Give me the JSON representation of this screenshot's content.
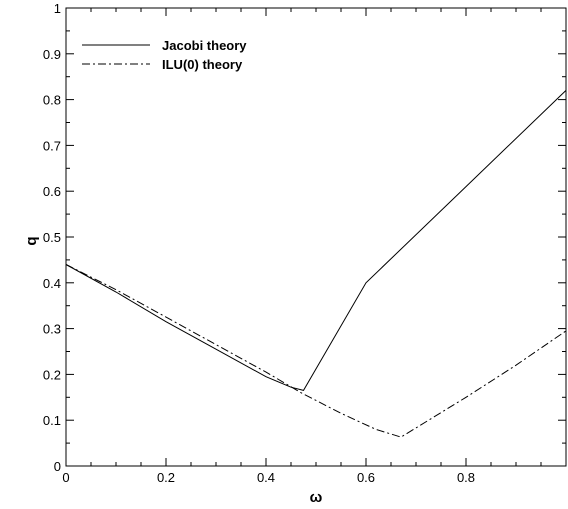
{
  "chart_data": {
    "type": "line",
    "title": "",
    "xlabel": "ω",
    "ylabel": "q",
    "xlim": [
      0,
      1
    ],
    "ylim": [
      0,
      1
    ],
    "xticks": [
      0,
      0.2,
      0.4,
      0.6,
      0.8
    ],
    "xtick_labels": [
      "0",
      "0.2",
      "0.4",
      "0.6",
      "0.8"
    ],
    "yticks": [
      0,
      0.1,
      0.2,
      0.3,
      0.4,
      0.5,
      0.6,
      0.7,
      0.8,
      0.9,
      1
    ],
    "ytick_labels": [
      "0",
      "0.1",
      "0.2",
      "0.3",
      "0.4",
      "0.5",
      "0.6",
      "0.7",
      "0.8",
      "0.9",
      "1"
    ],
    "grid": false,
    "legend_position": "top-left",
    "series": [
      {
        "name": "Jacobi theory",
        "style": "solid",
        "x": [
          0,
          0.1,
          0.2,
          0.3,
          0.4,
          0.45,
          0.475,
          0.6,
          0.8,
          1.0
        ],
        "y": [
          0.44,
          0.38,
          0.315,
          0.255,
          0.195,
          0.172,
          0.165,
          0.4,
          0.61,
          0.82
        ]
      },
      {
        "name": "ILU(0) theory",
        "style": "dashdot",
        "x": [
          0,
          0.1,
          0.2,
          0.3,
          0.4,
          0.47,
          0.55,
          0.62,
          0.67,
          0.8,
          0.9,
          1.0
        ],
        "y": [
          0.44,
          0.385,
          0.325,
          0.265,
          0.205,
          0.16,
          0.115,
          0.08,
          0.063,
          0.15,
          0.22,
          0.295
        ]
      }
    ],
    "color": "#000000"
  }
}
